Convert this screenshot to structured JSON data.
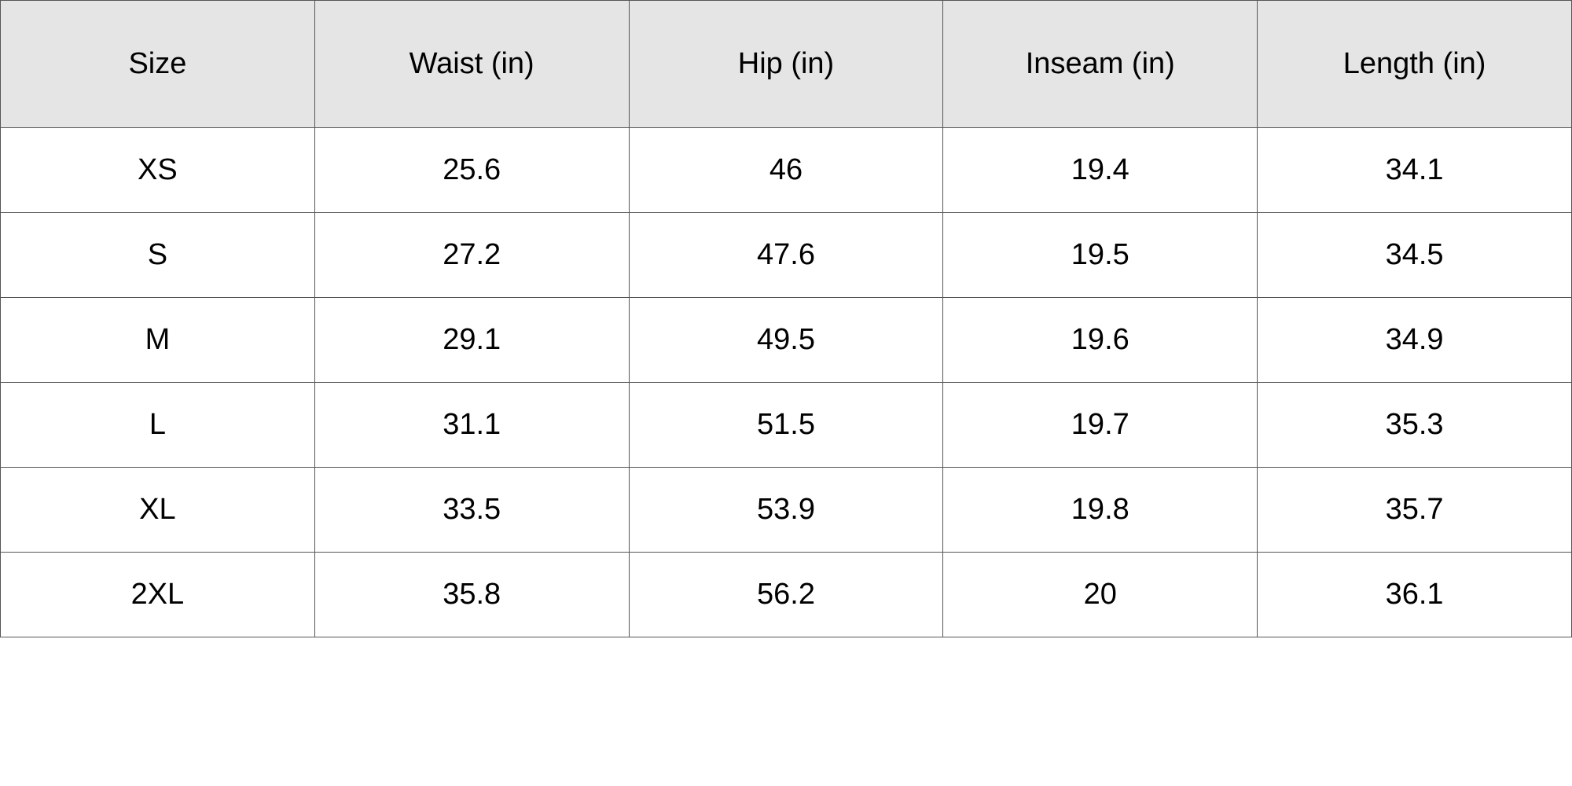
{
  "table": {
    "header": [
      "Size",
      "Waist (in)",
      "Hip (in)",
      "Inseam (in)",
      "Length (in)"
    ],
    "rows": [
      [
        "XS",
        25.6,
        46,
        19.4,
        34.1
      ],
      [
        "S",
        27.2,
        47.6,
        19.5,
        34.5
      ],
      [
        "M",
        29.1,
        49.5,
        19.6,
        34.9
      ],
      [
        "L",
        31.1,
        51.5,
        19.7,
        35.3
      ],
      [
        "XL",
        33.5,
        53.9,
        19.8,
        35.7
      ],
      [
        "2XL",
        35.8,
        56.2,
        20,
        36.1
      ]
    ]
  }
}
